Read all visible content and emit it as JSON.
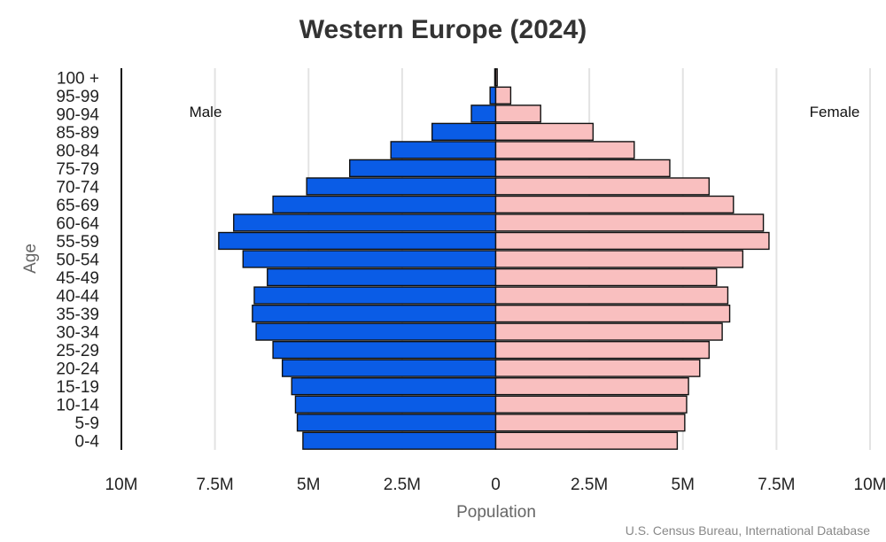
{
  "chart_data": {
    "type": "bar",
    "orientation": "horizontal",
    "layout": "population-pyramid",
    "title": "Western Europe (2024)",
    "xlabel": "Population",
    "ylabel": "Age",
    "xlim": [
      -10000000,
      10000000
    ],
    "x_ticks": [
      -10000000,
      -7500000,
      -5000000,
      -2500000,
      0,
      2500000,
      5000000,
      7500000,
      10000000
    ],
    "x_tick_labels": [
      "10M",
      "7.5M",
      "5M",
      "2.5M",
      "0",
      "2.5M",
      "5M",
      "7.5M",
      "10M"
    ],
    "grid": true,
    "categories": [
      "0-4",
      "5-9",
      "10-14",
      "15-19",
      "20-24",
      "25-29",
      "30-34",
      "35-39",
      "40-44",
      "45-49",
      "50-54",
      "55-59",
      "60-64",
      "65-69",
      "70-74",
      "75-79",
      "80-84",
      "85-89",
      "90-94",
      "95-99",
      "100 +"
    ],
    "series": [
      {
        "name": "Male",
        "color": "#0a5ce6",
        "side": "left",
        "values": [
          5150000,
          5300000,
          5350000,
          5450000,
          5700000,
          5950000,
          6400000,
          6500000,
          6450000,
          6100000,
          6750000,
          7400000,
          7000000,
          5950000,
          5050000,
          3900000,
          2800000,
          1700000,
          650000,
          150000,
          25000
        ]
      },
      {
        "name": "Female",
        "color": "#f9bfbf",
        "side": "right",
        "values": [
          4850000,
          5050000,
          5100000,
          5150000,
          5450000,
          5700000,
          6050000,
          6250000,
          6200000,
          5900000,
          6600000,
          7300000,
          7150000,
          6350000,
          5700000,
          4650000,
          3700000,
          2600000,
          1200000,
          400000,
          40000
        ]
      }
    ],
    "source": "U.S. Census Bureau, International Database"
  }
}
